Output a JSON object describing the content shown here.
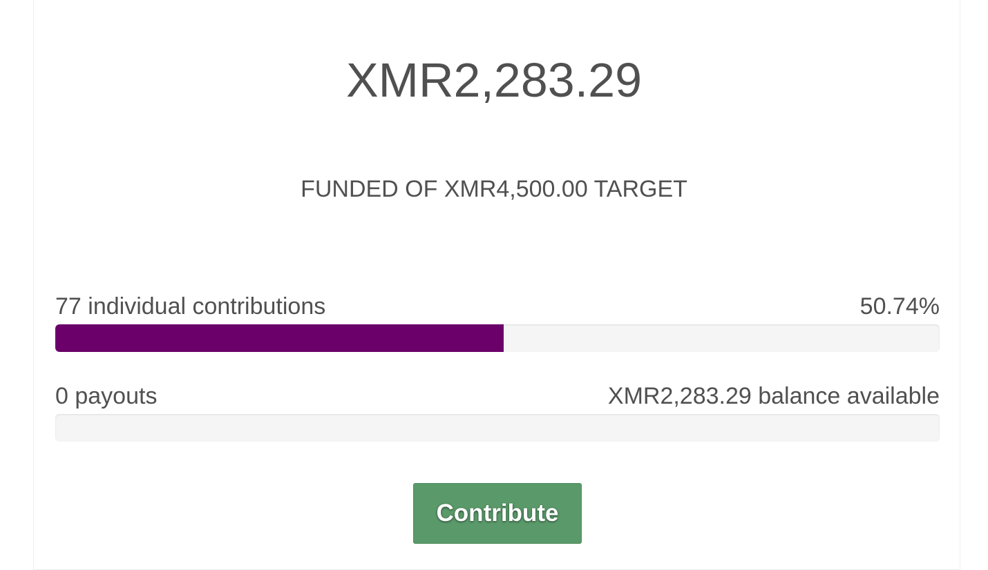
{
  "funding": {
    "raised": "XMR2,283.29",
    "target_line": "FUNDED OF XMR4,500.00 TARGET"
  },
  "contributions": {
    "count_label": "77 individual contributions",
    "percent_label": "50.74%",
    "progress_fraction": 0.5074
  },
  "payouts": {
    "count_label": "0 payouts",
    "balance_label": "XMR2,283.29 balance available",
    "progress_fraction": 0.0
  },
  "actions": {
    "contribute_label": "Contribute"
  },
  "colors": {
    "progress_fill": "#6b006b",
    "button_bg": "#5a9a6a"
  }
}
